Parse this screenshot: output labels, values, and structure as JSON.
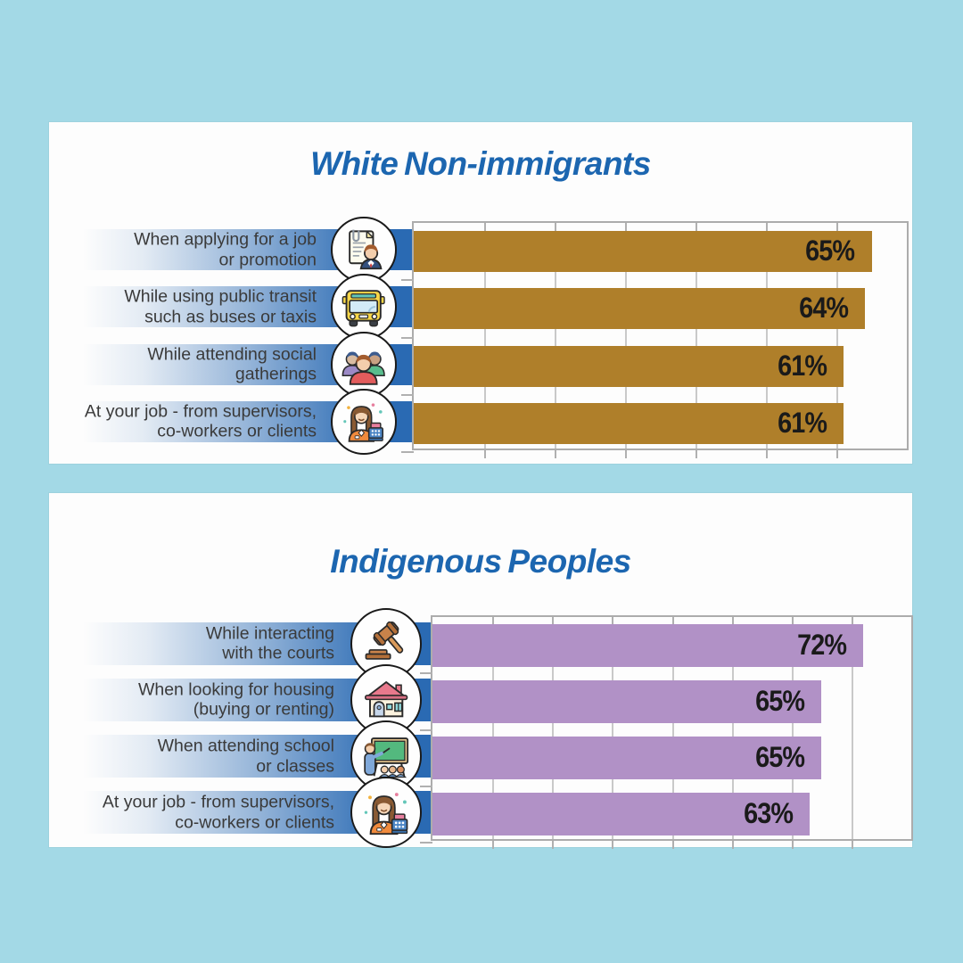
{
  "colors": {
    "background": "#A3D9E6",
    "panel": "#FDFDFD",
    "title_blue": "#1C66B0",
    "strip_blue": "#2A6AB3",
    "grid_gray": "#C9C9C9",
    "tick_gray": "#B0B0B0",
    "value_text": "#1A1A1A",
    "label_text": "#3A3A3A"
  },
  "chart_data": [
    {
      "type": "bar",
      "orientation": "horizontal",
      "title": "White Non-immigrants",
      "bar_color": "#AF7F2A",
      "axis": {
        "min": 0,
        "max": 70,
        "grid_step": 10
      },
      "grid": true,
      "legend": "none",
      "rows": [
        {
          "label_lines": [
            "When applying for a job",
            "or promotion"
          ],
          "value": 65,
          "value_label": "65%",
          "icon": "job-application-icon"
        },
        {
          "label_lines": [
            "While using public transit",
            "such as buses or taxis"
          ],
          "value": 64,
          "value_label": "64%",
          "icon": "bus-icon"
        },
        {
          "label_lines": [
            "While attending social",
            "gatherings"
          ],
          "value": 61,
          "value_label": "61%",
          "icon": "social-gatherings-icon"
        },
        {
          "label_lines": [
            "At your job - from supervisors,",
            "co-workers or clients"
          ],
          "value": 61,
          "value_label": "61%",
          "icon": "cashier-icon"
        }
      ]
    },
    {
      "type": "bar",
      "orientation": "horizontal",
      "title": "Indigenous Peoples",
      "bar_color": "#B191C6",
      "axis": {
        "min": 0,
        "max": 80,
        "grid_step": 10
      },
      "grid": true,
      "legend": "none",
      "rows": [
        {
          "label_lines": [
            "While interacting",
            "with the courts"
          ],
          "value": 72,
          "value_label": "72%",
          "icon": "gavel-icon"
        },
        {
          "label_lines": [
            "When looking for housing",
            "(buying or renting)"
          ],
          "value": 65,
          "value_label": "65%",
          "icon": "house-icon"
        },
        {
          "label_lines": [
            "When attending school",
            "or classes"
          ],
          "value": 65,
          "value_label": "65%",
          "icon": "school-icon"
        },
        {
          "label_lines": [
            "At your job - from supervisors,",
            "co-workers or clients"
          ],
          "value": 63,
          "value_label": "63%",
          "icon": "cashier-icon"
        }
      ]
    }
  ]
}
